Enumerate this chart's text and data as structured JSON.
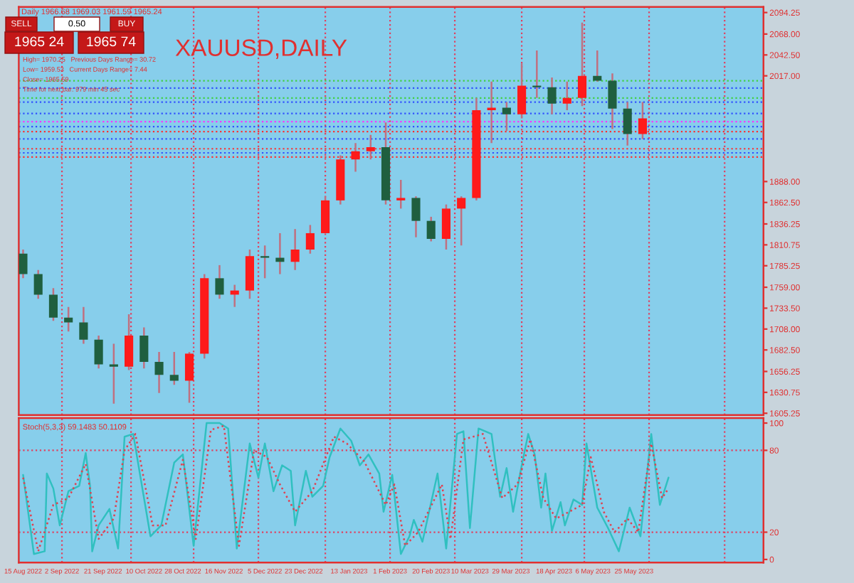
{
  "chart_data": [
    {
      "type": "candlestick",
      "title": "XAUUSD,DAILY",
      "x": [
        "2022-08-15",
        "2022-08-22",
        "2022-08-29",
        "2022-09-05",
        "2022-09-12",
        "2022-09-19",
        "2022-09-26",
        "2022-10-03",
        "2022-10-10",
        "2022-10-17",
        "2022-10-24",
        "2022-10-31",
        "2022-11-07",
        "2022-11-14",
        "2022-11-21",
        "2022-11-28",
        "2022-12-05",
        "2022-12-12",
        "2022-12-19",
        "2022-12-26",
        "2023-01-02",
        "2023-01-09",
        "2023-01-16",
        "2023-01-23",
        "2023-01-30",
        "2023-02-06",
        "2023-02-13",
        "2023-02-20",
        "2023-02-27",
        "2023-03-06",
        "2023-03-13",
        "2023-03-20",
        "2023-03-27",
        "2023-04-03",
        "2023-04-10",
        "2023-04-17",
        "2023-04-24",
        "2023-05-01",
        "2023-05-08",
        "2023-05-15",
        "2023-05-22",
        "2023-05-29"
      ],
      "ohlc": [
        [
          1800,
          1805,
          1770,
          1775
        ],
        [
          1775,
          1780,
          1745,
          1750
        ],
        [
          1750,
          1758,
          1718,
          1722
        ],
        [
          1722,
          1735,
          1705,
          1716
        ],
        [
          1716,
          1735,
          1690,
          1695
        ],
        [
          1695,
          1700,
          1660,
          1665
        ],
        [
          1665,
          1690,
          1617,
          1662
        ],
        [
          1662,
          1726,
          1658,
          1700
        ],
        [
          1700,
          1710,
          1660,
          1668
        ],
        [
          1668,
          1680,
          1630,
          1652
        ],
        [
          1652,
          1680,
          1640,
          1645
        ],
        [
          1645,
          1680,
          1618,
          1678
        ],
        [
          1678,
          1775,
          1672,
          1770
        ],
        [
          1770,
          1786,
          1745,
          1750
        ],
        [
          1750,
          1762,
          1735,
          1755
        ],
        [
          1755,
          1805,
          1745,
          1797
        ],
        [
          1797,
          1810,
          1770,
          1795
        ],
        [
          1795,
          1825,
          1775,
          1790
        ],
        [
          1790,
          1830,
          1780,
          1805
        ],
        [
          1805,
          1835,
          1800,
          1825
        ],
        [
          1825,
          1870,
          1825,
          1865
        ],
        [
          1865,
          1920,
          1860,
          1915
        ],
        [
          1915,
          1935,
          1900,
          1925
        ],
        [
          1925,
          1945,
          1915,
          1930
        ],
        [
          1930,
          1960,
          1860,
          1865
        ],
        [
          1865,
          1890,
          1855,
          1868
        ],
        [
          1868,
          1870,
          1820,
          1840
        ],
        [
          1840,
          1845,
          1815,
          1818
        ],
        [
          1818,
          1860,
          1805,
          1855
        ],
        [
          1855,
          1870,
          1810,
          1868
        ],
        [
          1868,
          1990,
          1865,
          1975
        ],
        [
          1975,
          2010,
          1935,
          1978
        ],
        [
          1978,
          1985,
          1950,
          1970
        ],
        [
          1970,
          2032,
          1965,
          2005
        ],
        [
          2005,
          2048,
          1990,
          2003
        ],
        [
          2003,
          2015,
          1970,
          1983
        ],
        [
          1983,
          2010,
          1975,
          1990
        ],
        [
          1990,
          2082,
          1980,
          2017
        ],
        [
          2017,
          2048,
          2010,
          2011
        ],
        [
          2011,
          2020,
          1952,
          1977
        ],
        [
          1977,
          1985,
          1932,
          1946
        ],
        [
          1946,
          1985,
          1940,
          1965
        ]
      ],
      "colors": [
        "#1f5f3f",
        "#1f5f3f",
        "#1f5f3f",
        "#1f5f3f",
        "#1f5f3f",
        "#1f5f3f",
        "#1f5f3f",
        "#ff1a1a",
        "#1f5f3f",
        "#1f5f3f",
        "#1f5f3f",
        "#ff1a1a",
        "#ff1a1a",
        "#1f5f3f",
        "#ff1a1a",
        "#ff1a1a",
        "#1f5f3f",
        "#1f5f3f",
        "#ff1a1a",
        "#ff1a1a",
        "#ff1a1a",
        "#ff1a1a",
        "#ff1a1a",
        "#ff1a1a",
        "#1f5f3f",
        "#ff1a1a",
        "#1f5f3f",
        "#1f5f3f",
        "#ff1a1a",
        "#ff1a1a",
        "#ff1a1a",
        "#ff1a1a",
        "#1f5f3f",
        "#ff1a1a",
        "#1f5f3f",
        "#1f5f3f",
        "#ff1a1a",
        "#ff1a1a",
        "#1f5f3f",
        "#1f5f3f",
        "#1f5f3f",
        "#ff1a1a"
      ],
      "xlim": [
        "2022-08-13",
        "2023-07-24"
      ],
      "ylim": [
        1603,
        2101
      ],
      "yticks": [
        {
          "value": 1605.25,
          "label": "1605.25"
        },
        {
          "value": 1630.75,
          "label": "1630.75"
        },
        {
          "value": 1656.25,
          "label": "1656.25"
        },
        {
          "value": 1682.5,
          "label": "1682.50"
        },
        {
          "value": 1708,
          "label": "1708.00"
        },
        {
          "value": 1733.5,
          "label": "1733.50"
        },
        {
          "value": 1759,
          "label": "1759.00"
        },
        {
          "value": 1785.25,
          "label": "1785.25"
        },
        {
          "value": 1810.75,
          "label": "1810.75"
        },
        {
          "value": 1836.25,
          "label": "1836.25"
        },
        {
          "value": 1862.5,
          "label": "1862.50"
        },
        {
          "value": 1888,
          "label": "1888.00"
        },
        {
          "value": 2017,
          "label": "2017.00"
        },
        {
          "value": 2042.5,
          "label": "2042.50"
        },
        {
          "value": 2068,
          "label": "2068.00"
        },
        {
          "value": 2094.25,
          "label": "2094.25"
        }
      ],
      "tick_labels": "y",
      "ref_lines": [
        {
          "axis": "y",
          "value": 2011,
          "color": "#40d040",
          "line_style": "dotted"
        },
        {
          "axis": "y",
          "value": 2002,
          "color": "#3050ff",
          "line_style": "dotted"
        },
        {
          "axis": "y",
          "value": 1990,
          "color": "#40d040",
          "line_style": "dotted"
        },
        {
          "axis": "y",
          "value": 1985,
          "color": "#3050ff",
          "line_style": "dotted"
        },
        {
          "axis": "y",
          "value": 1971,
          "color": "#3050ff",
          "line_style": "dotted"
        },
        {
          "axis": "y",
          "value": 1961,
          "color": "#ff30ff",
          "line_style": "dotted"
        },
        {
          "axis": "y",
          "value": 1955,
          "color": "#3050ff",
          "line_style": "dotted"
        },
        {
          "axis": "y",
          "value": 1949,
          "color": "#ff3030",
          "line_style": "dotted"
        },
        {
          "axis": "y",
          "value": 1940,
          "color": "#3050ff",
          "line_style": "dotted"
        },
        {
          "axis": "y",
          "value": 1928,
          "color": "#ff3030",
          "line_style": "dotted"
        },
        {
          "axis": "y",
          "value": 1923,
          "color": "#3050ff",
          "line_style": "dotted"
        },
        {
          "axis": "y",
          "value": 1918,
          "color": "#ff3030",
          "line_style": "dotted"
        },
        {
          "axis": "x",
          "value": "2022-09-02",
          "color": "#e04060",
          "line_style": "dotted"
        },
        {
          "axis": "x",
          "value": "2022-10-04",
          "color": "#e04060",
          "line_style": "dotted"
        },
        {
          "axis": "x",
          "value": "2022-11-02",
          "color": "#e04060",
          "line_style": "dotted"
        },
        {
          "axis": "x",
          "value": "2022-12-02",
          "color": "#e04060",
          "line_style": "dotted"
        },
        {
          "axis": "x",
          "value": "2023-01-02",
          "color": "#e04060",
          "line_style": "dotted"
        },
        {
          "axis": "x",
          "value": "2023-02-01",
          "color": "#e04060",
          "line_style": "dotted"
        },
        {
          "axis": "x",
          "value": "2023-03-03",
          "color": "#e04060",
          "line_style": "dotted"
        },
        {
          "axis": "x",
          "value": "2023-04-03",
          "color": "#e04060",
          "line_style": "dotted"
        },
        {
          "axis": "x",
          "value": "2023-05-02",
          "color": "#e04060",
          "line_style": "dotted"
        },
        {
          "axis": "x",
          "value": "2023-06-01",
          "color": "#e04060",
          "line_style": "dotted"
        },
        {
          "axis": "x",
          "value": "2023-07-06",
          "color": "#e04060",
          "line_style": "dotted"
        }
      ],
      "annotations": [
        "Daily 1966.68 1969.03 1961.59 1965.24",
        "SELL",
        "0.50",
        "BUY",
        "1965 24",
        "1965 74",
        "High= 1970.25   Previous Days Range= 30.72",
        "Low= 1959.53   Current Days Range= 7.44",
        "Close= 1965.59",
        "Time for next bar: 979 min 45 sec"
      ],
      "grid": false
    },
    {
      "type": "line",
      "title": "Stoch(5,3,3) 59.1483 50.1109",
      "series": [
        {
          "color": "#30c0c0",
          "line_style": "solid",
          "x": [
            "2022-08-15",
            "2022-08-20",
            "2022-08-25",
            "2022-08-26",
            "2022-08-29",
            "2022-09-01",
            "2022-09-05",
            "2022-09-10",
            "2022-09-13",
            "2022-09-15",
            "2022-09-16",
            "2022-09-19",
            "2022-09-24",
            "2022-09-28",
            "2022-10-01",
            "2022-10-05",
            "2022-10-13",
            "2022-10-18",
            "2022-10-24",
            "2022-10-28",
            "2022-11-02",
            "2022-11-08",
            "2022-11-14",
            "2022-11-18",
            "2022-11-22",
            "2022-11-28",
            "2022-12-02",
            "2022-12-05",
            "2022-12-09",
            "2022-12-13",
            "2022-12-17",
            "2022-12-19",
            "2022-12-24",
            "2022-12-27",
            "2023-01-01",
            "2023-01-04",
            "2023-01-09",
            "2023-01-14",
            "2023-01-18",
            "2023-01-22",
            "2023-01-27",
            "2023-01-29",
            "2023-02-02",
            "2023-02-06",
            "2023-02-10",
            "2023-02-12",
            "2023-02-16",
            "2023-02-23",
            "2023-02-27",
            "2023-03-04",
            "2023-03-07",
            "2023-03-10",
            "2023-03-14",
            "2023-03-20",
            "2023-03-24",
            "2023-03-27",
            "2023-03-30",
            "2023-04-03",
            "2023-04-06",
            "2023-04-09",
            "2023-04-12",
            "2023-04-14",
            "2023-04-17",
            "2023-04-21",
            "2023-04-23",
            "2023-04-27",
            "2023-05-01",
            "2023-05-03",
            "2023-05-08",
            "2023-05-13",
            "2023-05-18",
            "2023-05-23",
            "2023-05-28",
            "2023-06-02",
            "2023-06-06",
            "2023-06-10"
          ],
          "values": [
            62,
            4,
            6,
            63,
            52,
            25,
            50,
            54,
            78,
            54,
            6,
            25,
            37,
            8,
            90,
            92,
            17,
            25,
            71,
            77,
            10,
            100,
            100,
            96,
            8,
            85,
            60,
            85,
            50,
            69,
            65,
            25,
            65,
            46,
            54,
            75,
            96,
            87,
            69,
            77,
            63,
            35,
            62,
            4,
            17,
            29,
            13,
            63,
            8,
            92,
            94,
            23,
            96,
            92,
            46,
            67,
            35,
            69,
            92,
            77,
            38,
            63,
            21,
            42,
            25,
            44,
            40,
            85,
            38,
            23,
            6,
            38,
            17,
            92,
            40,
            60
          ]
        },
        {
          "color": "#e04050",
          "line_style": "dotted",
          "x": [
            "2022-08-15",
            "2022-08-22",
            "2022-08-29",
            "2022-09-05",
            "2022-09-13",
            "2022-09-19",
            "2022-09-26",
            "2022-10-01",
            "2022-10-06",
            "2022-10-14",
            "2022-10-20",
            "2022-10-28",
            "2022-11-03",
            "2022-11-10",
            "2022-11-16",
            "2022-11-23",
            "2022-11-30",
            "2022-12-06",
            "2022-12-12",
            "2022-12-19",
            "2022-12-27",
            "2023-01-06",
            "2023-01-12",
            "2023-01-20",
            "2023-01-30",
            "2023-02-03",
            "2023-02-08",
            "2023-02-14",
            "2023-02-25",
            "2023-03-01",
            "2023-03-07",
            "2023-03-16",
            "2023-03-25",
            "2023-04-01",
            "2023-04-07",
            "2023-04-13",
            "2023-04-19",
            "2023-04-25",
            "2023-05-01",
            "2023-05-05",
            "2023-05-11",
            "2023-05-16",
            "2023-05-22",
            "2023-05-27",
            "2023-06-02",
            "2023-06-07",
            "2023-06-10"
          ],
          "values": [
            60,
            6,
            40,
            45,
            70,
            15,
            30,
            80,
            92,
            25,
            25,
            73,
            15,
            95,
            98,
            10,
            80,
            75,
            55,
            35,
            50,
            90,
            85,
            72,
            40,
            55,
            10,
            20,
            55,
            15,
            88,
            92,
            45,
            55,
            88,
            45,
            30,
            35,
            40,
            75,
            35,
            20,
            30,
            20,
            85,
            45,
            52
          ]
        }
      ],
      "xlim": [
        "2022-08-13",
        "2023-07-24"
      ],
      "ylim": [
        -2.3,
        103.7
      ],
      "yticks": [
        0,
        20,
        80,
        100
      ],
      "xticks": [
        {
          "value": "2022-08-15",
          "label": "15 Aug 2022"
        },
        {
          "value": "2022-09-02",
          "label": "2 Sep 2022"
        },
        {
          "value": "2022-09-21",
          "label": "21 Sep 2022"
        },
        {
          "value": "2022-10-10",
          "label": "10 Oct 2022"
        },
        {
          "value": "2022-10-28",
          "label": "28 Oct 2022"
        },
        {
          "value": "2022-11-16",
          "label": "16 Nov 2022"
        },
        {
          "value": "2022-12-05",
          "label": "5 Dec 2022"
        },
        {
          "value": "2022-12-23",
          "label": "23 Dec 2022"
        },
        {
          "value": "2023-01-13",
          "label": "13 Jan 2023"
        },
        {
          "value": "2023-02-01",
          "label": "1 Feb 2023"
        },
        {
          "value": "2023-02-20",
          "label": "20 Feb 2023"
        },
        {
          "value": "2023-03-10",
          "label": "10 Mar 2023"
        },
        {
          "value": "2023-03-29",
          "label": "29 Mar 2023"
        },
        {
          "value": "2023-04-18",
          "label": "18 Apr 2023"
        },
        {
          "value": "2023-05-06",
          "label": "6 May 2023"
        },
        {
          "value": "2023-05-25",
          "label": "25 May 2023"
        }
      ],
      "ref_lines": [
        {
          "axis": "y",
          "value": 20,
          "color": "#e04060",
          "line_style": "dotted"
        },
        {
          "axis": "y",
          "value": 80,
          "color": "#e04060",
          "line_style": "dotted"
        },
        {
          "axis": "x",
          "value": "2022-09-02",
          "color": "#e04060",
          "line_style": "dotted"
        },
        {
          "axis": "x",
          "value": "2022-10-04",
          "color": "#e04060",
          "line_style": "dotted"
        },
        {
          "axis": "x",
          "value": "2022-11-02",
          "color": "#e04060",
          "line_style": "dotted"
        },
        {
          "axis": "x",
          "value": "2022-12-02",
          "color": "#e04060",
          "line_style": "dotted"
        },
        {
          "axis": "x",
          "value": "2023-01-02",
          "color": "#e04060",
          "line_style": "dotted"
        },
        {
          "axis": "x",
          "value": "2023-02-01",
          "color": "#e04060",
          "line_style": "dotted"
        },
        {
          "axis": "x",
          "value": "2023-03-03",
          "color": "#e04060",
          "line_style": "dotted"
        },
        {
          "axis": "x",
          "value": "2023-04-03",
          "color": "#e04060",
          "line_style": "dotted"
        },
        {
          "axis": "x",
          "value": "2023-05-02",
          "color": "#e04060",
          "line_style": "dotted"
        },
        {
          "axis": "x",
          "value": "2023-06-01",
          "color": "#e04060",
          "line_style": "dotted"
        },
        {
          "axis": "x",
          "value": "2023-07-06",
          "color": "#e04060",
          "line_style": "dotted"
        }
      ],
      "grid": false
    }
  ]
}
